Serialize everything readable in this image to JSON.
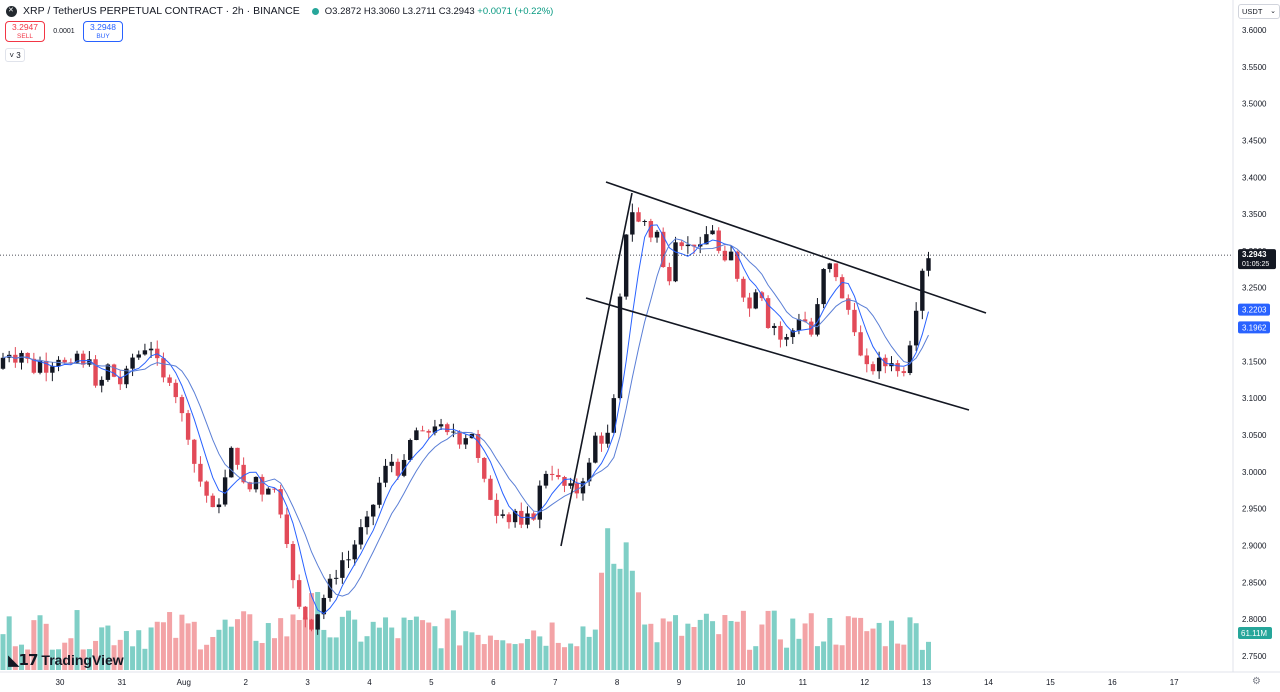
{
  "header": {
    "symbol_title": "XRP / TetherUS PERPETUAL CONTRACT · 2h · BINANCE",
    "open": "O3.2872",
    "high": "H3.3060",
    "low": "L3.2711",
    "close": "C3.2943",
    "change": "+0.0071 (+0.22%)"
  },
  "trade": {
    "sell_price": "3.2947",
    "sell_label": "SELL",
    "spread": "0.0001",
    "buy_price": "3.2948",
    "buy_label": "BUY"
  },
  "indicators_toggle": "3",
  "currency_select": "USDT",
  "brand": "TradingView",
  "colors": {
    "up": "#089981",
    "down": "#f23645",
    "up_candle_body": "#131722",
    "down_candle_body": "#e24a58",
    "vol_up": "#7fcfc6",
    "vol_down": "#f3a3a6",
    "ma_fast": "#2962ff",
    "ma_slow": "#5b7fd6",
    "price_label_bg": "#131722",
    "ma_label_bg": "#2962ff",
    "volume_label_bg": "#26a69a"
  },
  "chart_data": {
    "type": "candlestick",
    "price_axis": {
      "ticks": [
        "3.6000",
        "3.5500",
        "3.5000",
        "3.4500",
        "3.4000",
        "3.3500",
        "3.3000",
        "3.2500",
        "3.2000",
        "3.1500",
        "3.1000",
        "3.0500",
        "3.0000",
        "2.9500",
        "2.9000",
        "2.8500",
        "2.8000",
        "2.7500"
      ],
      "ylim": [
        2.73,
        3.62
      ]
    },
    "time_axis": {
      "ticks": [
        "30",
        "31",
        "Aug",
        "2",
        "3",
        "4",
        "5",
        "6",
        "7",
        "8",
        "9",
        "10",
        "11",
        "12",
        "13",
        "14",
        "15",
        "16",
        "17"
      ]
    },
    "last_price": {
      "value": "3.2943",
      "countdown": "01:05:25",
      "price": 3.2943
    },
    "ma_labels": [
      {
        "value": "3.2203",
        "price": 3.2203
      },
      {
        "value": "3.1962",
        "price": 3.1962
      }
    ],
    "volume_label": "61.11M",
    "candles_keypoints": [
      [
        0,
        3.14
      ],
      [
        7,
        3.175
      ],
      [
        12,
        3.145
      ],
      [
        18,
        3.16
      ],
      [
        25,
        3.165
      ],
      [
        32,
        3.13
      ],
      [
        38,
        3.155
      ],
      [
        44,
        3.14
      ],
      [
        50,
        3.14
      ],
      [
        56,
        3.16
      ],
      [
        62,
        3.15
      ],
      [
        70,
        3.14
      ],
      [
        77,
        3.16
      ],
      [
        84,
        3.14
      ],
      [
        90,
        3.16
      ],
      [
        97,
        3.1
      ],
      [
        103,
        3.13
      ],
      [
        110,
        3.15
      ],
      [
        116,
        3.12
      ],
      [
        122,
        3.12
      ],
      [
        128,
        3.14
      ],
      [
        134,
        3.16
      ],
      [
        140,
        3.16
      ],
      [
        146,
        3.17
      ],
      [
        153,
        3.17
      ],
      [
        159,
        3.14
      ],
      [
        165,
        3.12
      ],
      [
        172,
        3.13
      ],
      [
        178,
        3.09
      ],
      [
        184,
        3.07
      ],
      [
        190,
        3.04
      ],
      [
        196,
        3.0
      ],
      [
        203,
        2.98
      ],
      [
        209,
        2.96
      ],
      [
        215,
        2.94
      ],
      [
        221,
        2.97
      ],
      [
        227,
        3.0
      ],
      [
        233,
        3.04
      ],
      [
        240,
        3.0
      ],
      [
        246,
        2.97
      ],
      [
        252,
        2.98
      ],
      [
        258,
        3.0
      ],
      [
        264,
        2.96
      ],
      [
        270,
        2.99
      ],
      [
        276,
        2.97
      ],
      [
        282,
        2.94
      ],
      [
        288,
        2.9
      ],
      [
        294,
        2.84
      ],
      [
        300,
        2.81
      ],
      [
        306,
        2.8
      ],
      [
        312,
        2.79
      ],
      [
        318,
        2.81
      ],
      [
        324,
        2.83
      ],
      [
        330,
        2.85
      ],
      [
        336,
        2.86
      ],
      [
        342,
        2.88
      ],
      [
        348,
        2.88
      ],
      [
        354,
        2.9
      ],
      [
        360,
        2.92
      ],
      [
        366,
        2.93
      ],
      [
        372,
        2.95
      ],
      [
        378,
        2.98
      ],
      [
        384,
        3.0
      ],
      [
        390,
        3.02
      ],
      [
        396,
        3.0
      ],
      [
        402,
        3.0
      ],
      [
        408,
        3.03
      ],
      [
        414,
        3.06
      ],
      [
        420,
        3.05
      ],
      [
        426,
        3.05
      ],
      [
        432,
        3.06
      ],
      [
        438,
        3.07
      ],
      [
        444,
        3.05
      ],
      [
        450,
        3.05
      ],
      [
        456,
        3.06
      ],
      [
        462,
        3.03
      ],
      [
        468,
        3.06
      ],
      [
        474,
        3.05
      ],
      [
        480,
        3.0
      ],
      [
        486,
        2.98
      ],
      [
        492,
        2.96
      ],
      [
        498,
        2.94
      ],
      [
        504,
        2.95
      ],
      [
        510,
        2.93
      ],
      [
        516,
        2.95
      ],
      [
        522,
        2.92
      ],
      [
        528,
        2.94
      ],
      [
        534,
        2.94
      ],
      [
        540,
        2.98
      ],
      [
        546,
        3.0
      ],
      [
        552,
        3.0
      ],
      [
        558,
        2.99
      ],
      [
        564,
        2.98
      ],
      [
        570,
        2.98
      ],
      [
        576,
        2.97
      ],
      [
        582,
        2.99
      ],
      [
        588,
        3.0
      ],
      [
        594,
        3.05
      ],
      [
        600,
        3.04
      ],
      [
        606,
        3.05
      ],
      [
        612,
        3.05
      ],
      [
        618,
        3.2
      ],
      [
        624,
        3.3
      ],
      [
        630,
        3.37
      ],
      [
        636,
        3.33
      ],
      [
        642,
        3.35
      ],
      [
        648,
        3.33
      ],
      [
        654,
        3.31
      ],
      [
        660,
        3.34
      ],
      [
        666,
        3.22
      ],
      [
        672,
        3.3
      ],
      [
        678,
        3.33
      ],
      [
        684,
        3.3
      ],
      [
        690,
        3.31
      ],
      [
        696,
        3.31
      ],
      [
        702,
        3.3
      ],
      [
        708,
        3.33
      ],
      [
        714,
        3.33
      ],
      [
        720,
        3.29
      ],
      [
        726,
        3.28
      ],
      [
        732,
        3.3
      ],
      [
        738,
        3.26
      ],
      [
        744,
        3.24
      ],
      [
        750,
        3.22
      ],
      [
        756,
        3.25
      ],
      [
        762,
        3.24
      ],
      [
        768,
        3.2
      ],
      [
        774,
        3.2
      ],
      [
        780,
        3.18
      ],
      [
        786,
        3.18
      ],
      [
        792,
        3.19
      ],
      [
        798,
        3.21
      ],
      [
        804,
        3.21
      ],
      [
        810,
        3.18
      ],
      [
        816,
        3.21
      ],
      [
        822,
        3.27
      ],
      [
        828,
        3.28
      ],
      [
        834,
        3.28
      ],
      [
        840,
        3.24
      ],
      [
        846,
        3.22
      ],
      [
        852,
        3.22
      ],
      [
        858,
        3.16
      ],
      [
        864,
        3.15
      ],
      [
        870,
        3.13
      ],
      [
        876,
        3.15
      ],
      [
        882,
        3.15
      ],
      [
        888,
        3.14
      ],
      [
        894,
        3.16
      ],
      [
        900,
        3.12
      ],
      [
        906,
        3.15
      ],
      [
        912,
        3.19
      ],
      [
        918,
        3.24
      ],
      [
        924,
        3.29
      ],
      [
        930,
        3.2943
      ]
    ]
  }
}
